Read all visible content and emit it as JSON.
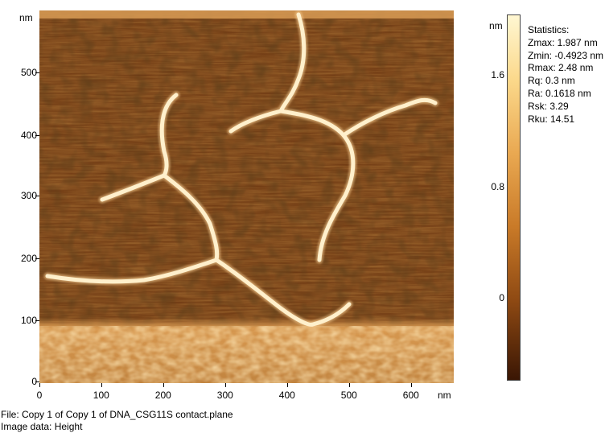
{
  "image_panel": {
    "y_unit": "nm",
    "x_unit": "nm",
    "y_ticks": [
      "500",
      "400",
      "300",
      "200",
      "100",
      "0"
    ],
    "x_ticks": [
      "0",
      "100",
      "200",
      "300",
      "400",
      "500",
      "600"
    ]
  },
  "colorbar": {
    "unit": "nm",
    "ticks": [
      "1.6",
      "0.8",
      "0"
    ],
    "colors": {
      "top": "#fff7d2",
      "mid": "#c97a28",
      "bottom": "#3a1604"
    }
  },
  "statistics": {
    "title": "Statistics:",
    "lines": [
      "Zmax: 1.987 nm",
      "Zmin: -0.4923 nm",
      "Rmax: 2.48 nm",
      "Rq: 0.3 nm",
      "Ra: 0.1618 nm",
      "Rsk: 3.29",
      "Rku: 14.51"
    ]
  },
  "footer": {
    "file": "File: Copy 1 of Copy 1 of DNA_CSG11S contact.plane",
    "image_data": "Image data: Height"
  }
}
